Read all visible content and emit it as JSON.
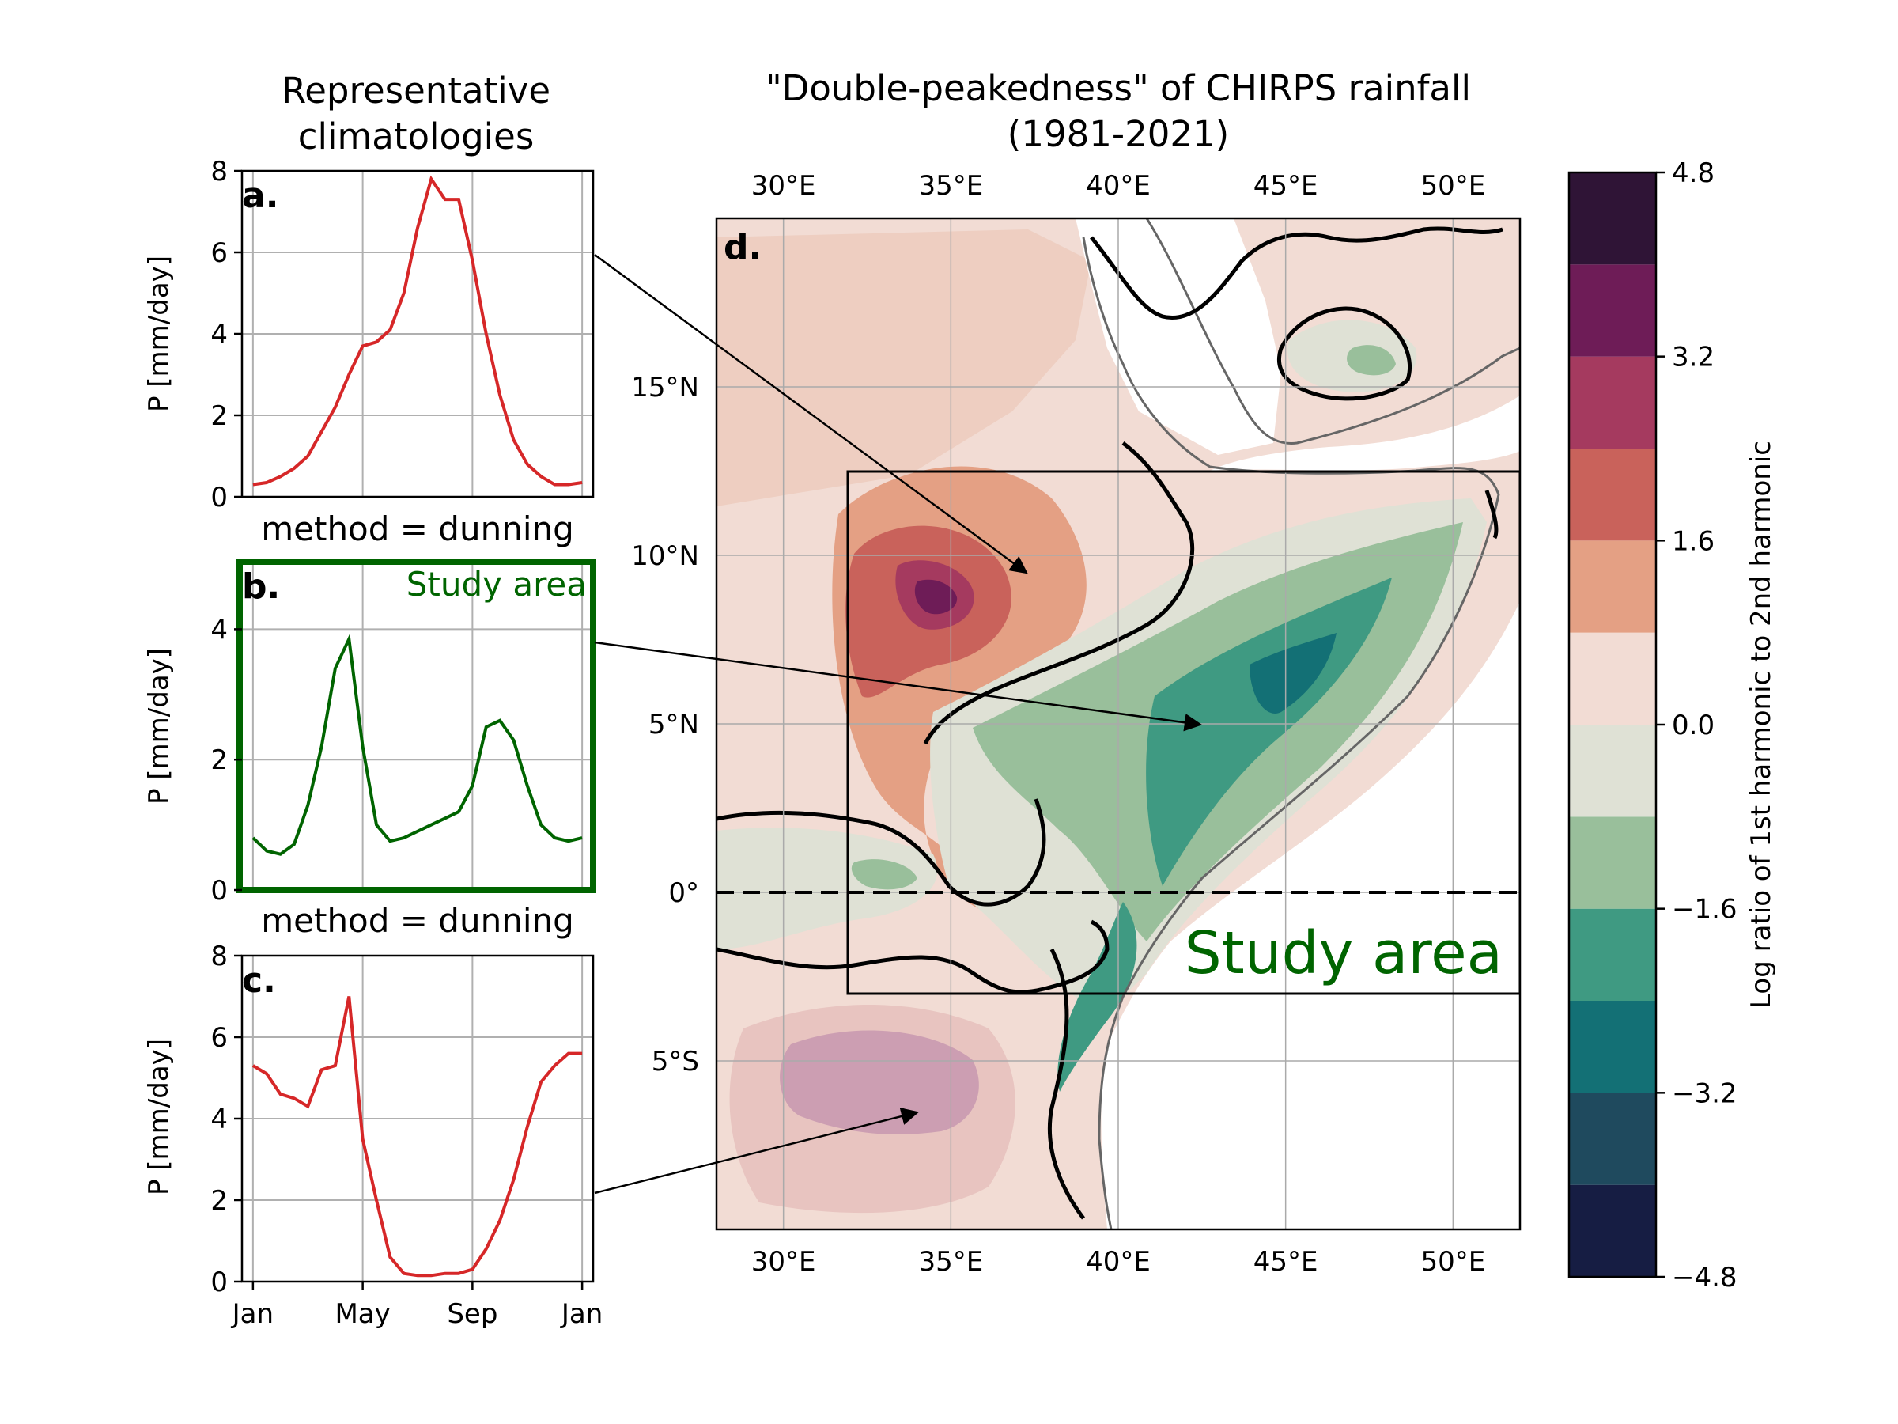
{
  "titles": {
    "left": [
      "Representative",
      "climatologies"
    ],
    "main": [
      "\"Double-peakedness\" of CHIRPS rainfall",
      "(1981-2021)"
    ]
  },
  "panels": {
    "a": {
      "letter": "a.",
      "ylabel": "P [mm/day]",
      "method": "method = dunning"
    },
    "b": {
      "letter": "b.",
      "ylabel": "P [mm/day]",
      "method": "method = dunning",
      "tag": "Study area"
    },
    "c": {
      "letter": "c.",
      "ylabel": "P [mm/day]"
    },
    "d": {
      "letter": "d.",
      "study_label": "Study area"
    }
  },
  "colorbar": {
    "label": "Log ratio of 1st harmonic to 2nd harmonic",
    "ticks": [
      "4.8",
      "3.2",
      "1.6",
      "0.0",
      "−1.6",
      "−3.2",
      "−4.8"
    ],
    "levels": [
      -4.8,
      -4.0,
      -3.2,
      -2.4,
      -1.6,
      -0.8,
      0.0,
      0.8,
      1.6,
      2.4,
      3.2,
      4.0,
      4.8
    ],
    "colors": [
      "#161d43",
      "#1f4a5e",
      "#137075",
      "#3f9a82",
      "#99bf9b",
      "#dfe1d5",
      "#f2dcd4",
      "#e4a084",
      "#c9625b",
      "#a53a5f",
      "#6e1c57",
      "#2f1436"
    ]
  },
  "map": {
    "lon_ticks": [
      "30°E",
      "35°E",
      "40°E",
      "45°E",
      "50°E"
    ],
    "lat_ticks": [
      "15°N",
      "10°N",
      "5°N",
      "0°",
      "5°S"
    ],
    "lon_range": [
      28,
      52
    ],
    "lat_range": [
      -10,
      20
    ]
  },
  "colors": {
    "red": "#d62728",
    "green": "#006400"
  },
  "chart_data": [
    {
      "type": "line",
      "panel": "a",
      "ylim": [
        0,
        8
      ],
      "yticks": [
        "0",
        "2",
        "4",
        "6",
        "8"
      ],
      "x": [
        0,
        0.5,
        1,
        1.5,
        2,
        2.5,
        3,
        3.5,
        4,
        4.5,
        5,
        5.5,
        6,
        6.5,
        7,
        7.5,
        8,
        8.5,
        9,
        9.5,
        10,
        10.5,
        11,
        11.5,
        12
      ],
      "values": [
        0.3,
        0.35,
        0.5,
        0.7,
        1.0,
        1.6,
        2.2,
        3.0,
        3.7,
        3.8,
        4.1,
        5.0,
        6.6,
        7.8,
        7.3,
        7.3,
        5.8,
        4.0,
        2.5,
        1.4,
        0.8,
        0.5,
        0.3,
        0.3,
        0.35
      ]
    },
    {
      "type": "line",
      "panel": "b",
      "ylim": [
        0,
        5
      ],
      "yticks": [
        "0",
        "2",
        "4"
      ],
      "x": [
        0,
        0.5,
        1,
        1.5,
        2,
        2.5,
        3,
        3.5,
        4,
        4.5,
        5,
        5.5,
        6,
        6.5,
        7,
        7.5,
        8,
        8.5,
        9,
        9.5,
        10,
        10.5,
        11,
        11.5,
        12
      ],
      "values": [
        0.8,
        0.6,
        0.55,
        0.7,
        1.3,
        2.2,
        3.4,
        3.85,
        2.2,
        1.0,
        0.75,
        0.8,
        0.9,
        1.0,
        1.1,
        1.2,
        1.6,
        2.5,
        2.6,
        2.3,
        1.6,
        1.0,
        0.8,
        0.75,
        0.8
      ]
    },
    {
      "type": "line",
      "panel": "c",
      "ylim": [
        0,
        8
      ],
      "yticks": [
        "0",
        "2",
        "4",
        "6",
        "8"
      ],
      "xticks": [
        "Jan",
        "May",
        "Sep",
        "Jan"
      ],
      "x": [
        0,
        0.5,
        1,
        1.5,
        2,
        2.5,
        3,
        3.5,
        4,
        4.5,
        5,
        5.5,
        6,
        6.5,
        7,
        7.5,
        8,
        8.5,
        9,
        9.5,
        10,
        10.5,
        11,
        11.5,
        12
      ],
      "values": [
        5.3,
        5.1,
        4.6,
        4.5,
        4.3,
        5.2,
        5.3,
        7.0,
        3.5,
        2.0,
        0.6,
        0.2,
        0.15,
        0.15,
        0.2,
        0.2,
        0.3,
        0.8,
        1.5,
        2.5,
        3.8,
        4.9,
        5.3,
        5.6,
        5.6
      ]
    }
  ]
}
